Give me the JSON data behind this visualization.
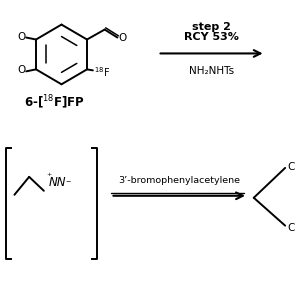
{
  "bg_color": "#ffffff",
  "step2_text": "step 2",
  "rcy_text": "RCY 53%",
  "nh2nhts_text": "NH₂NHTs",
  "bromophenyl_text": "3’-bromophenylacetylene",
  "text_color": "#000000",
  "line_color": "#000000",
  "figsize": [
    2.96,
    2.96
  ],
  "dpi": 100
}
